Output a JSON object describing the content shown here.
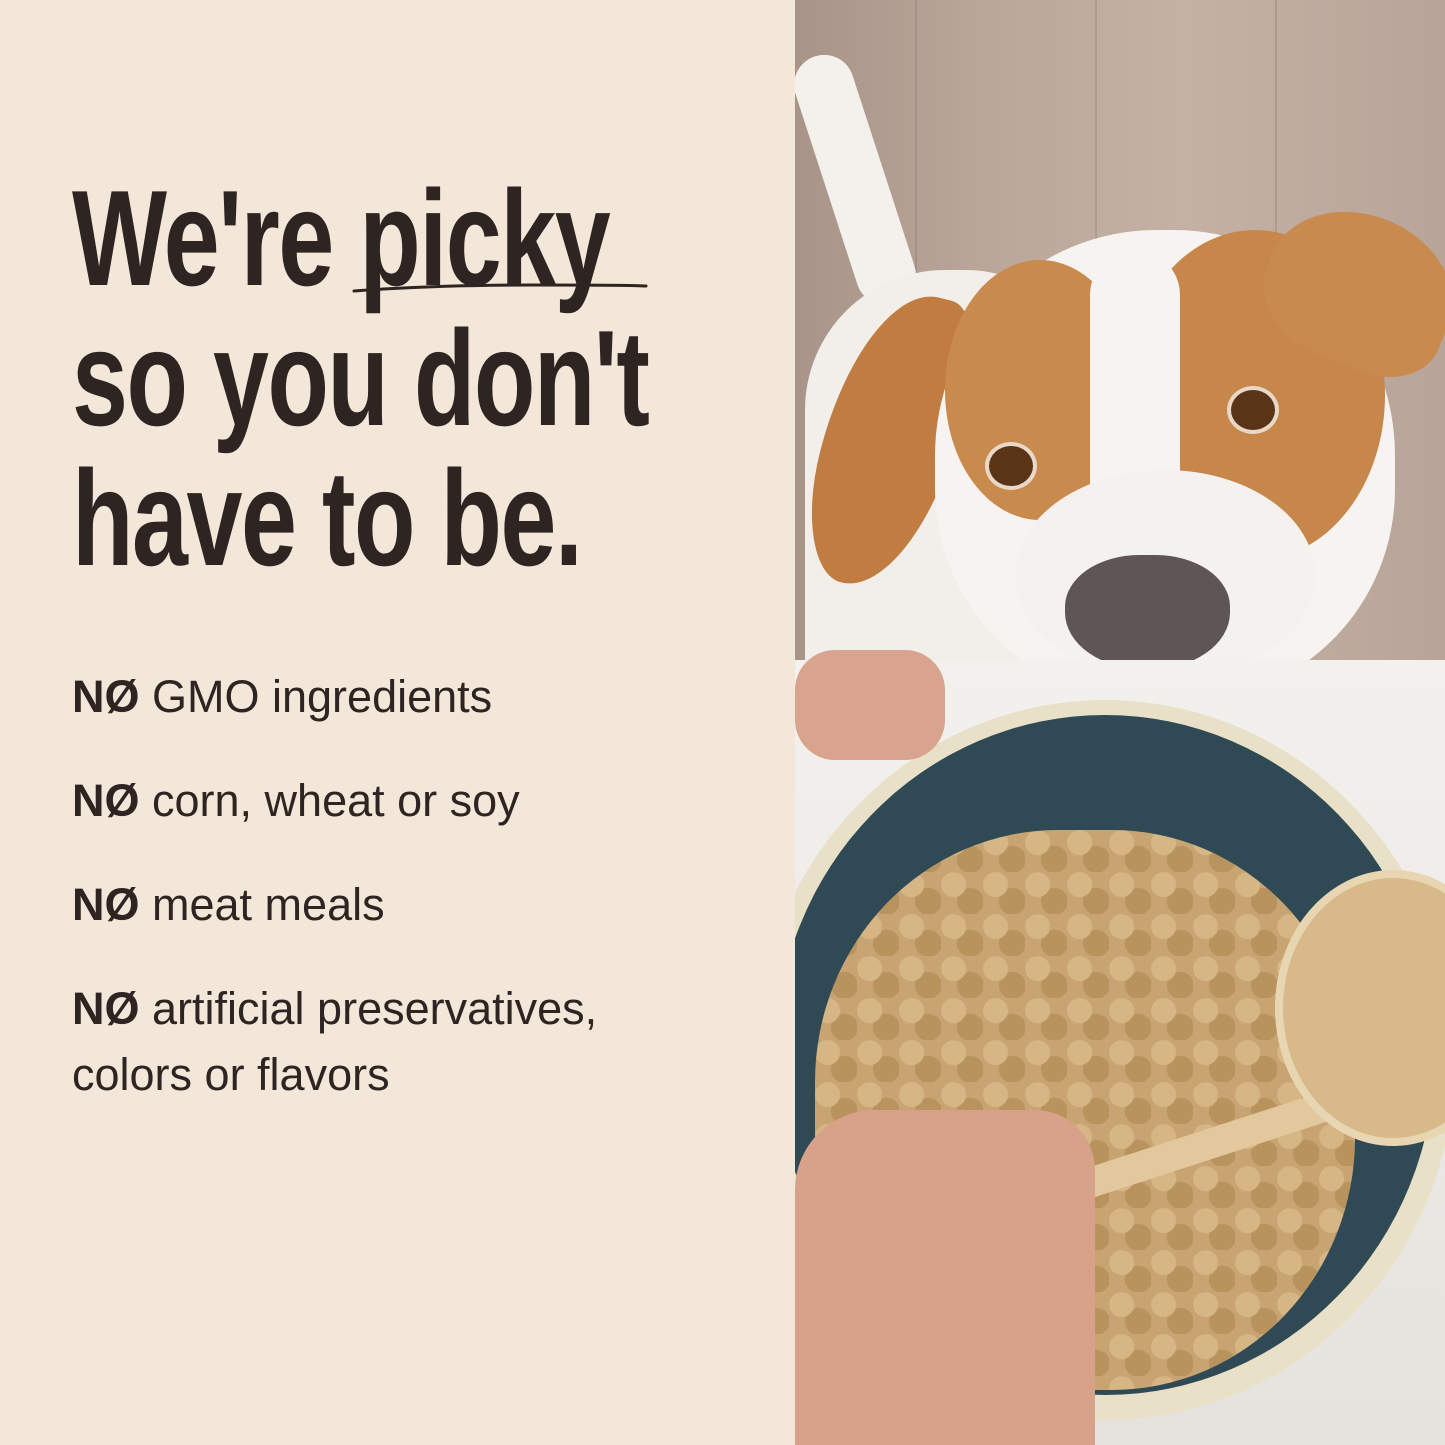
{
  "headline": {
    "lines": [
      "We're picky",
      "so you don't",
      "have to be."
    ],
    "emphasized_word": "picky"
  },
  "claims": [
    {
      "prefix": "NØ",
      "text": "GMO ingredients"
    },
    {
      "prefix": "NØ",
      "text": "corn, wheat or soy"
    },
    {
      "prefix": "NØ",
      "text": "meat meals"
    },
    {
      "prefix": "NØ",
      "text": "artificial preservatives, colors or flavors"
    }
  ],
  "colors": {
    "background": "#f2e7d9",
    "text": "#2e2522",
    "bowl_interior": "#2f4a55",
    "dog_fur": "#c7874a"
  },
  "photo": {
    "subject": "dog-looking-at-food-bowl-photo"
  }
}
